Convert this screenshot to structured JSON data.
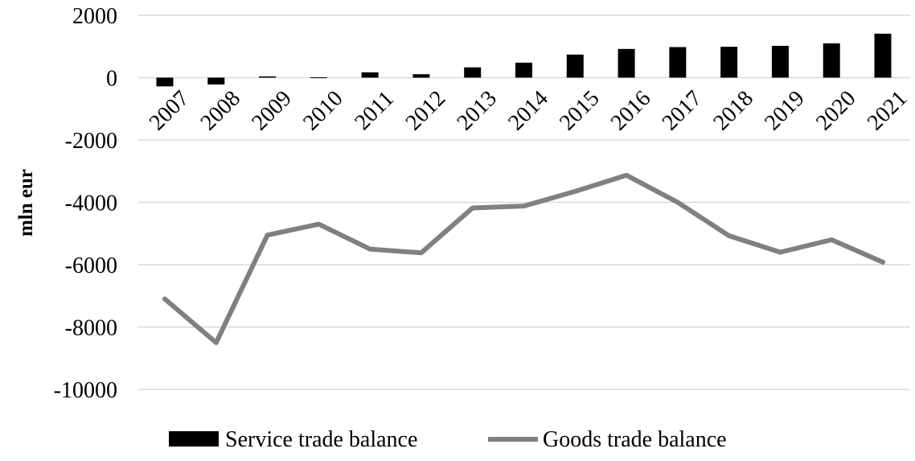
{
  "chart_data": {
    "type": "bar+line",
    "title": "",
    "xlabel": "",
    "ylabel": "mln eur",
    "ylim": [
      -10000,
      2000
    ],
    "yticks": [
      2000,
      0,
      -2000,
      -4000,
      -6000,
      -8000,
      -10000
    ],
    "grid": true,
    "legend_position": "bottom",
    "categories": [
      "2007",
      "2008",
      "2009",
      "2010",
      "2011",
      "2012",
      "2013",
      "2014",
      "2015",
      "2016",
      "2017",
      "2018",
      "2019",
      "2020",
      "2021"
    ],
    "series": [
      {
        "name": "Service trade balance",
        "type": "bar",
        "color": "#000000",
        "values": [
          -280,
          -220,
          40,
          10,
          170,
          110,
          330,
          480,
          740,
          920,
          980,
          990,
          1020,
          1100,
          1410
        ]
      },
      {
        "name": "Goods trade balance",
        "type": "line",
        "color": "#808080",
        "values": [
          -7100,
          -8500,
          -5050,
          -4700,
          -5500,
          -5620,
          -4180,
          -4120,
          -3650,
          -3130,
          -4000,
          -5070,
          -5600,
          -5200,
          -5920
        ]
      }
    ]
  }
}
